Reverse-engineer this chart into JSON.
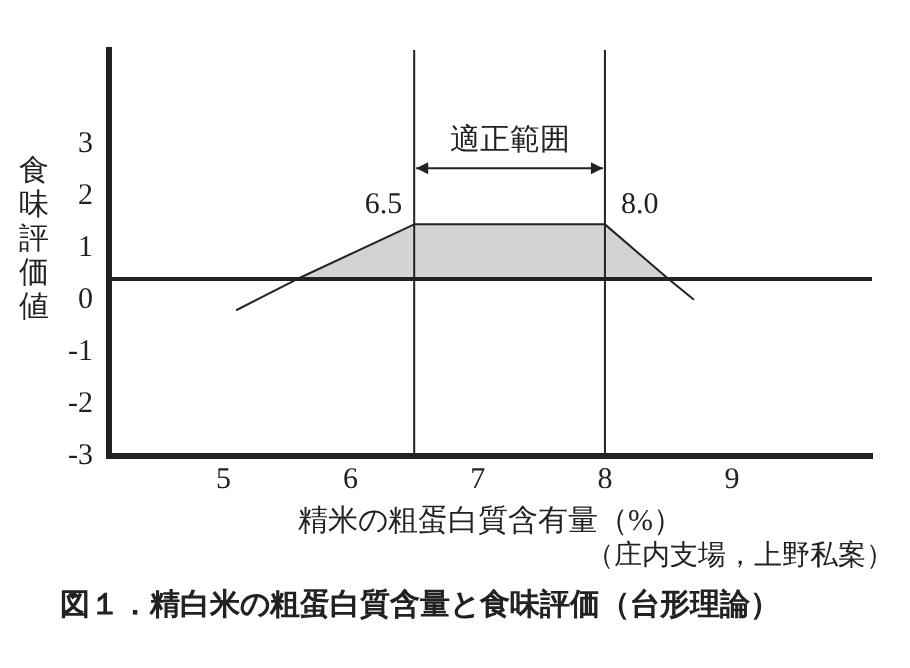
{
  "chart_data": {
    "type": "line",
    "title": "図１．精白米の粗蛋白質含量と食味評価（台形理論）",
    "xlabel": "精米の粗蛋白質含有量（%）",
    "ylabel": "食味評価値",
    "series": [
      {
        "type": "area",
        "color": "#d3d3d3",
        "x": [
          5.58,
          6.5,
          8.0,
          8.5
        ],
        "values": [
          0.4,
          1.45,
          1.45,
          0.4
        ]
      },
      {
        "color": "#222222",
        "x": [
          5.1,
          5.58,
          6.5,
          8.0,
          8.5,
          8.7
        ],
        "values": [
          -0.2,
          0.4,
          1.45,
          1.45,
          0.4,
          0.0
        ]
      }
    ],
    "xlim": [
      4.1,
      10.1
    ],
    "xticks": [
      5,
      6,
      7,
      8,
      9
    ],
    "ylim": [
      -3,
      4.8
    ],
    "yticks": [
      -3,
      -2,
      -1,
      0,
      1,
      2,
      3
    ],
    "ref_lines": [
      {
        "axis": "y",
        "value": 0.4,
        "color": "#222222"
      },
      {
        "axis": "x",
        "value": 6.5,
        "color": "#222222"
      },
      {
        "axis": "x",
        "value": 8.0,
        "color": "#222222"
      }
    ],
    "annotations": [
      {
        "text": "6.5",
        "x": 6.5,
        "y": 1.45
      },
      {
        "text": "8.0",
        "x": 8.0,
        "y": 1.45
      },
      "適正範囲",
      "（庄内支場，上野私案）"
    ],
    "grid": false,
    "legend": false,
    "marker": "none",
    "line_style": "solid"
  }
}
